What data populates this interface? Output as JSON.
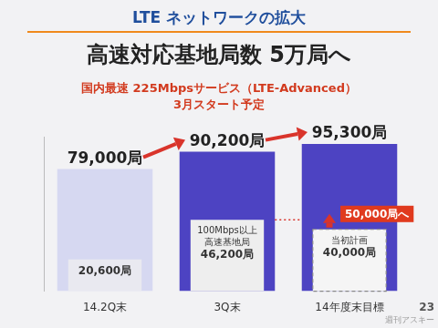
{
  "header": "LTE ネットワークの拡大",
  "chart_data": {
    "type": "bar",
    "title": "高速対応基地局数 5万局へ",
    "subtitle": [
      "国内最速 225Mbpsサービス（LTE-Advanced）",
      "3月スタート予定"
    ],
    "categories": [
      "14.2Q末",
      "3Q末",
      "14年度末目標"
    ],
    "series": [
      {
        "values": [
          79000,
          90200,
          95300
        ],
        "value_labels": [
          "79,000局",
          "90,200局",
          "95,300局"
        ],
        "colors": [
          "#d6d8f1",
          "#4d43c2",
          "#4d43c2"
        ]
      },
      {
        "values": [
          20600,
          46200,
          null
        ],
        "value_labels": [
          "20,600局",
          "46,200局",
          null
        ],
        "colors": [
          "#e9e9f0",
          "#eeeeee",
          "#eeeeee"
        ]
      },
      {
        "values": [
          null,
          null,
          40000
        ],
        "value_labels": [
          null,
          null,
          "40,000局"
        ],
        "colors": [
          "#f5f5f5",
          "#f5f5f5",
          "#f5f5f5"
        ],
        "line_style": "dashed"
      }
    ],
    "annotations": [
      {
        "category": "3Q末",
        "text": "100Mbps以上\n高速基地局"
      },
      {
        "category": "14年度末目標",
        "text": "当初計画"
      },
      {
        "category": "14年度末目標",
        "text": "50,000局へ",
        "value": 50000
      }
    ],
    "ylim": [
      0,
      100000
    ],
    "tick_labels": "x",
    "grid": false,
    "data_labels": true
  },
  "page_number": "23",
  "watermark": "週刊アスキー"
}
